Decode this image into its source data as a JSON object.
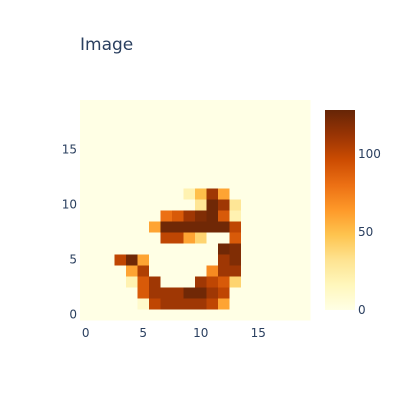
{
  "chart_data": {
    "type": "heatmap",
    "title": "Image",
    "xlabel": "",
    "ylabel": "",
    "x_range": [
      0,
      20
    ],
    "y_range": [
      0,
      20
    ],
    "x_ticks": [
      "0",
      "5",
      "10",
      "15"
    ],
    "y_ticks": [
      "0",
      "5",
      "10",
      "15"
    ],
    "colorscale": "YlOrBr",
    "colorscale_stops": [
      "#ffffe5",
      "#fff7bc",
      "#fee391",
      "#fec44f",
      "#fe9929",
      "#ec7014",
      "#cc4c02",
      "#993404",
      "#662506"
    ],
    "zmin": 0,
    "zmax": 128,
    "colorbar_ticks": [
      "0",
      "50",
      "100"
    ],
    "colorbar_tick_values": [
      0,
      50,
      100
    ],
    "z": [
      [
        0,
        0,
        0,
        0,
        0,
        0,
        0,
        0,
        0,
        0,
        0,
        0,
        0,
        0,
        0,
        0,
        0,
        0,
        0,
        0
      ],
      [
        0,
        0,
        0,
        0,
        0,
        10,
        100,
        110,
        110,
        110,
        110,
        100,
        60,
        0,
        0,
        0,
        0,
        0,
        0,
        0
      ],
      [
        0,
        0,
        0,
        0,
        0,
        90,
        110,
        110,
        110,
        125,
        125,
        110,
        100,
        0,
        0,
        0,
        0,
        0,
        0,
        0
      ],
      [
        0,
        0,
        0,
        0,
        20,
        90,
        110,
        0,
        0,
        0,
        110,
        100,
        90,
        40,
        0,
        0,
        0,
        0,
        0,
        0
      ],
      [
        0,
        0,
        0,
        0,
        60,
        105,
        0,
        0,
        0,
        0,
        0,
        70,
        110,
        110,
        0,
        0,
        0,
        0,
        0,
        0
      ],
      [
        0,
        0,
        0,
        100,
        125,
        60,
        0,
        0,
        0,
        0,
        0,
        0,
        110,
        120,
        0,
        0,
        0,
        0,
        0,
        0
      ],
      [
        0,
        0,
        0,
        0,
        0,
        0,
        0,
        0,
        0,
        0,
        0,
        0,
        125,
        120,
        0,
        0,
        0,
        0,
        0,
        0
      ],
      [
        0,
        0,
        0,
        0,
        0,
        0,
        0,
        100,
        100,
        60,
        40,
        0,
        0,
        90,
        0,
        0,
        0,
        0,
        0,
        0
      ],
      [
        0,
        0,
        0,
        0,
        0,
        0,
        60,
        125,
        125,
        125,
        125,
        125,
        125,
        100,
        0,
        0,
        0,
        0,
        0,
        0
      ],
      [
        0,
        0,
        0,
        0,
        0,
        0,
        0,
        80,
        90,
        110,
        120,
        125,
        90,
        20,
        0,
        0,
        0,
        0,
        0,
        0
      ],
      [
        0,
        0,
        0,
        0,
        0,
        0,
        0,
        0,
        0,
        0,
        30,
        125,
        110,
        30,
        0,
        0,
        0,
        0,
        0,
        0
      ],
      [
        0,
        0,
        0,
        0,
        0,
        0,
        0,
        0,
        0,
        20,
        50,
        110,
        60,
        0,
        0,
        0,
        0,
        0,
        0,
        0
      ],
      [
        0,
        0,
        0,
        0,
        0,
        0,
        0,
        0,
        0,
        0,
        0,
        0,
        0,
        0,
        0,
        0,
        0,
        0,
        0,
        0
      ],
      [
        0,
        0,
        0,
        0,
        0,
        0,
        0,
        0,
        0,
        0,
        0,
        0,
        0,
        0,
        0,
        0,
        0,
        0,
        0,
        0
      ],
      [
        0,
        0,
        0,
        0,
        0,
        0,
        0,
        0,
        0,
        0,
        0,
        0,
        0,
        0,
        0,
        0,
        0,
        0,
        0,
        0
      ],
      [
        0,
        0,
        0,
        0,
        0,
        0,
        0,
        0,
        0,
        0,
        0,
        0,
        0,
        0,
        0,
        0,
        0,
        0,
        0,
        0
      ],
      [
        0,
        0,
        0,
        0,
        0,
        0,
        0,
        0,
        0,
        0,
        0,
        0,
        0,
        0,
        0,
        0,
        0,
        0,
        0,
        0
      ],
      [
        0,
        0,
        0,
        0,
        0,
        0,
        0,
        0,
        0,
        0,
        0,
        0,
        0,
        0,
        0,
        0,
        0,
        0,
        0,
        0
      ],
      [
        0,
        0,
        0,
        0,
        0,
        0,
        0,
        0,
        0,
        0,
        0,
        0,
        0,
        0,
        0,
        0,
        0,
        0,
        0,
        0
      ],
      [
        0,
        0,
        0,
        0,
        0,
        0,
        0,
        0,
        0,
        0,
        0,
        0,
        0,
        0,
        0,
        0,
        0,
        0,
        0,
        0
      ]
    ]
  }
}
